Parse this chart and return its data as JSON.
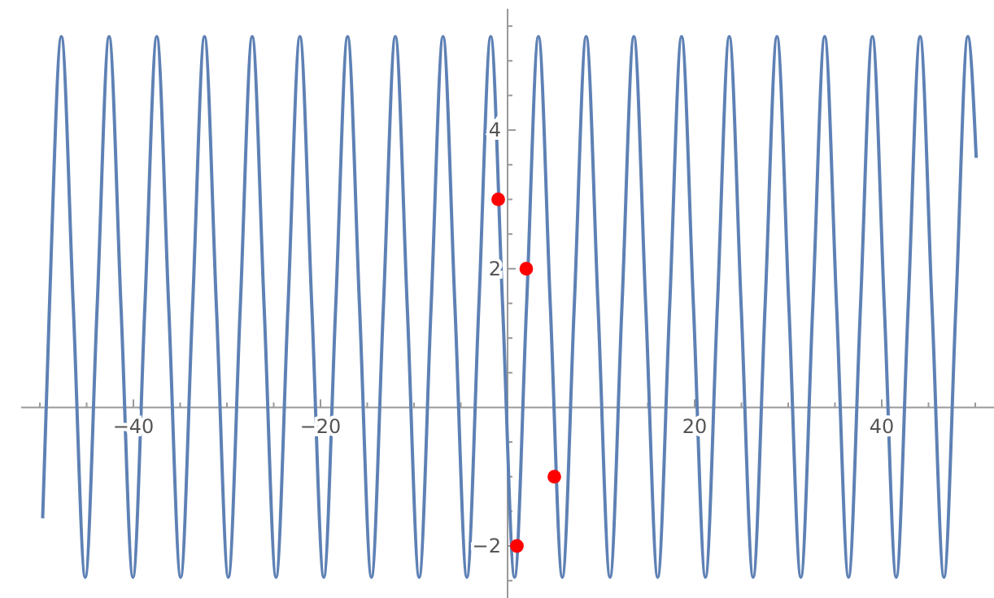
{
  "chart_data": {
    "type": "line",
    "xlim": [
      -52,
      52
    ],
    "ylim": [
      -2.75,
      5.75
    ],
    "grid": false,
    "xticks": [
      {
        "value": -50,
        "label": null
      },
      {
        "value": -45,
        "label": null
      },
      {
        "value": -40,
        "label": "−40"
      },
      {
        "value": -35,
        "label": null
      },
      {
        "value": -30,
        "label": null
      },
      {
        "value": -25,
        "label": null
      },
      {
        "value": -20,
        "label": "−20"
      },
      {
        "value": -15,
        "label": null
      },
      {
        "value": -10,
        "label": null
      },
      {
        "value": -5,
        "label": null
      },
      {
        "value": 5,
        "label": null
      },
      {
        "value": 10,
        "label": null
      },
      {
        "value": 15,
        "label": null
      },
      {
        "value": 20,
        "label": "20"
      },
      {
        "value": 25,
        "label": null
      },
      {
        "value": 30,
        "label": null
      },
      {
        "value": 35,
        "label": null
      },
      {
        "value": 40,
        "label": "40"
      },
      {
        "value": 45,
        "label": null
      },
      {
        "value": 50,
        "label": null
      }
    ],
    "yticks": [
      {
        "value": -2.5,
        "label": null
      },
      {
        "value": -2,
        "label": "−2"
      },
      {
        "value": -1.5,
        "label": null
      },
      {
        "value": -1,
        "label": null
      },
      {
        "value": -0.5,
        "label": null
      },
      {
        "value": 0.5,
        "label": null
      },
      {
        "value": 1,
        "label": null
      },
      {
        "value": 1.5,
        "label": null
      },
      {
        "value": 2,
        "label": "2"
      },
      {
        "value": 2.5,
        "label": null
      },
      {
        "value": 3,
        "label": null
      },
      {
        "value": 3.5,
        "label": null
      },
      {
        "value": 4,
        "label": "4"
      },
      {
        "value": 4.5,
        "label": null
      },
      {
        "value": 5,
        "label": null
      },
      {
        "value": 5.5,
        "label": null
      }
    ],
    "series": [
      {
        "type": "line",
        "color": "#5e81b5",
        "marker": "none",
        "x": [
          -49.7,
          -48.975,
          -47.7,
          -46.425,
          -45.15,
          -43.875,
          -42.6,
          -41.325,
          -40.05,
          -38.775,
          -37.5,
          -36.225,
          -34.95,
          -33.675,
          -32.4,
          -31.125,
          -29.85,
          -28.575,
          -27.3,
          -26.025,
          -24.75,
          -23.475,
          -22.2,
          -20.925,
          -19.65,
          -18.375,
          -17.1,
          -15.825,
          -14.55,
          -13.275,
          -12,
          -10.725,
          -9.45,
          -8.175,
          -6.9,
          -5.625,
          -4.35,
          -3.075,
          -1.8,
          -0.525,
          0.75,
          2.025,
          3.3,
          4.575,
          5.85,
          7.125,
          8.4,
          9.675,
          10.95,
          12.225,
          13.5,
          14.775,
          16.05,
          17.325,
          18.6,
          19.875,
          21.15,
          22.425,
          23.7,
          24.975,
          26.25,
          27.525,
          28.8,
          30.075,
          31.35,
          32.625,
          33.9,
          35.175,
          36.45,
          37.725,
          39,
          40.275,
          41.55,
          42.825,
          44.1,
          45.375,
          46.65,
          47.925,
          49.2,
          50.1
        ],
        "values": [
          -1.6,
          1.45,
          5.35,
          1.45,
          -2.45,
          1.45,
          5.35,
          1.45,
          -2.45,
          1.45,
          5.35,
          1.45,
          -2.45,
          1.45,
          5.35,
          1.45,
          -2.45,
          1.45,
          5.35,
          1.45,
          -2.45,
          1.45,
          5.35,
          1.45,
          -2.45,
          1.45,
          5.35,
          1.45,
          -2.45,
          1.45,
          5.35,
          1.45,
          -2.45,
          1.45,
          5.35,
          1.45,
          -2.45,
          1.45,
          5.35,
          1.45,
          -2.45,
          1.45,
          5.35,
          1.45,
          -2.45,
          1.45,
          5.35,
          1.45,
          -2.45,
          1.45,
          5.35,
          1.45,
          -2.45,
          1.45,
          5.35,
          1.45,
          -2.45,
          1.45,
          5.35,
          1.45,
          -2.45,
          1.45,
          5.35,
          1.45,
          -2.45,
          1.45,
          5.35,
          1.45,
          -2.45,
          1.45,
          5.35,
          1.45,
          -2.45,
          1.45,
          5.35,
          1.45,
          -2.45,
          1.45,
          5.35,
          3.6
        ]
      },
      {
        "type": "scatter",
        "color": "#ff0000",
        "marker": "circle",
        "x": [
          -1,
          1,
          2,
          5
        ],
        "values": [
          3,
          -2,
          2,
          -1
        ]
      }
    ]
  }
}
